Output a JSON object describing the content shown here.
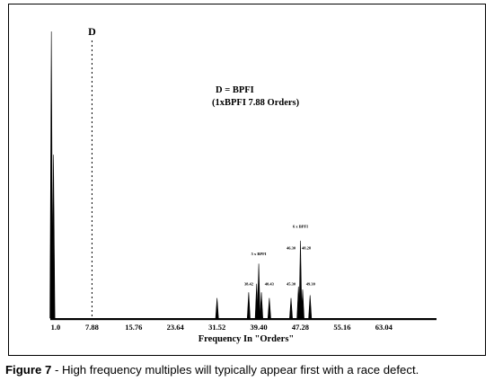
{
  "chart_data": {
    "type": "line",
    "title": "",
    "xlabel": "Frequency In \"Orders\"",
    "ylabel": "",
    "xlim": [
      0,
      73.0
    ],
    "ylim": [
      0,
      1.0
    ],
    "x_ticks": [
      "1.0",
      "7.88",
      "15.76",
      "23.64",
      "31.52",
      "39.40",
      "47.28",
      "55.16",
      "63.04"
    ],
    "x_tick_values": [
      1.0,
      7.88,
      15.76,
      23.64,
      31.52,
      39.4,
      47.28,
      55.16,
      63.04
    ],
    "marker_line": {
      "label": "D",
      "x": 7.88,
      "style": "dashed"
    },
    "annotation_lines": [
      "D = BPFI",
      "(1xBPFI 7.88 Orders)"
    ],
    "series": [
      {
        "peaks": [
          {
            "x": 0.2,
            "y": 1.0
          },
          {
            "x": 0.6,
            "y": 0.57
          },
          {
            "x": 31.52,
            "y": 0.07
          },
          {
            "x": 37.5,
            "y": 0.09
          },
          {
            "x": 39.0,
            "y": 0.12
          },
          {
            "x": 39.4,
            "y": 0.19
          },
          {
            "x": 39.9,
            "y": 0.09
          },
          {
            "x": 41.4,
            "y": 0.07
          },
          {
            "x": 45.5,
            "y": 0.07
          },
          {
            "x": 46.9,
            "y": 0.11
          },
          {
            "x": 47.28,
            "y": 0.27
          },
          {
            "x": 47.7,
            "y": 0.1
          },
          {
            "x": 49.1,
            "y": 0.08
          }
        ]
      }
    ],
    "peak_labels": [
      {
        "text": "5 x BPFI",
        "x": 39.4,
        "y": 0.22
      },
      {
        "text": "38.42",
        "x": 37.5,
        "y": 0.115
      },
      {
        "text": "40.43",
        "x": 41.4,
        "y": 0.115
      },
      {
        "text": "6 x BPFI",
        "x": 47.28,
        "y": 0.315
      },
      {
        "text": "46.30",
        "x": 45.5,
        "y": 0.24
      },
      {
        "text": "48.28",
        "x": 48.4,
        "y": 0.24
      },
      {
        "text": "45.30",
        "x": 45.5,
        "y": 0.115
      },
      {
        "text": "49.30",
        "x": 49.2,
        "y": 0.115
      }
    ]
  },
  "caption": {
    "prefix": "Figure 7",
    "text": " - High frequency multiples will typically appear first with a race defect."
  }
}
